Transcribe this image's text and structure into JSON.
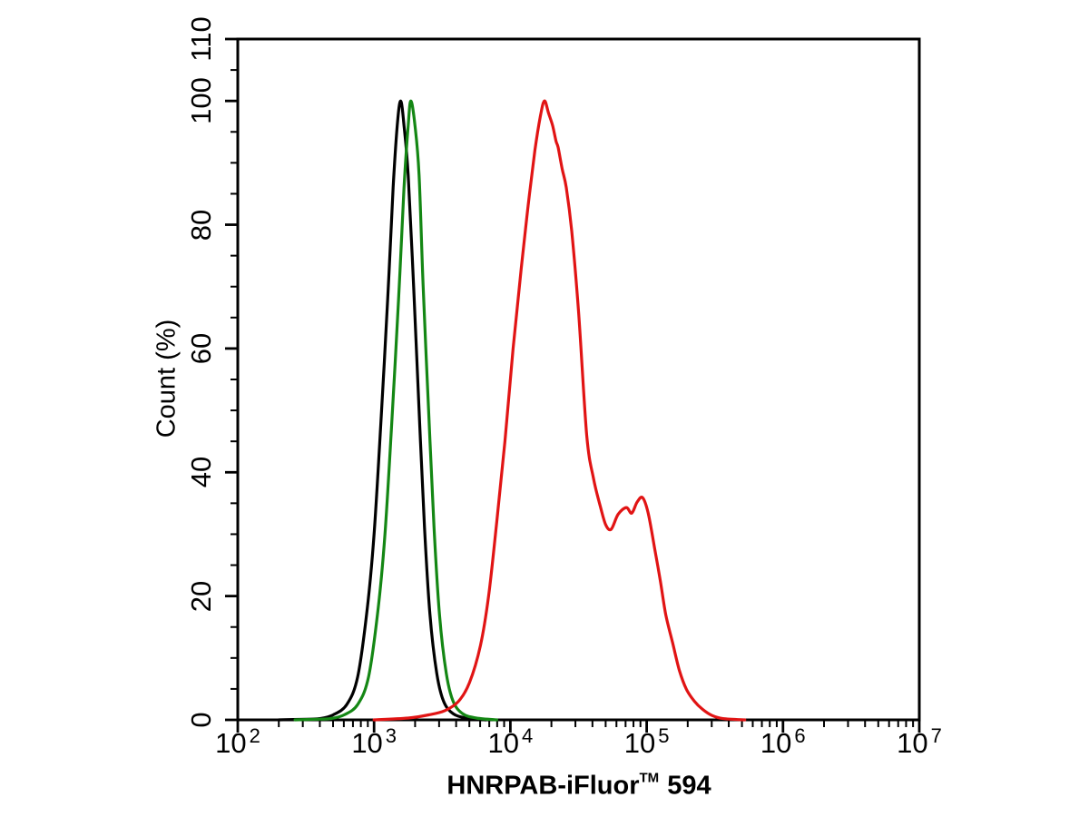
{
  "chart_data": {
    "type": "line",
    "chart_kind": "flow-cytometry-overlay-histogram",
    "title": "",
    "xlabel": "HNRPAB-iFluor™ 594",
    "xlabel_parts": {
      "main": "HNRPAB-iFluor",
      "sup": "TM",
      "tail": "594"
    },
    "ylabel": "Count (%)",
    "x_scale": "log10",
    "xlim_log10": [
      2,
      7
    ],
    "ylim": [
      0,
      110
    ],
    "x_tick_base": "10",
    "x_major_tick_exponents": [
      2,
      3,
      4,
      5,
      6,
      7
    ],
    "y_major_ticks": [
      0,
      20,
      40,
      60,
      80,
      100,
      110
    ],
    "y_minor_tick_step": 5,
    "grid": false,
    "legend": "none",
    "axis_color": "#000000",
    "background_color": "#ffffff",
    "series": [
      {
        "name": "black",
        "color": "#000000",
        "peak": {
          "x_log10": 3.19,
          "x": 1550,
          "y_percent": 100
        },
        "points_log10x_y": [
          [
            2.3,
            0
          ],
          [
            2.5,
            0.1
          ],
          [
            2.6,
            0.2
          ],
          [
            2.7,
            0.8
          ],
          [
            2.8,
            2.5
          ],
          [
            2.88,
            7
          ],
          [
            2.95,
            18
          ],
          [
            3.0,
            30
          ],
          [
            3.05,
            48
          ],
          [
            3.1,
            68
          ],
          [
            3.14,
            86
          ],
          [
            3.17,
            96
          ],
          [
            3.195,
            100
          ],
          [
            3.22,
            96
          ],
          [
            3.25,
            88
          ],
          [
            3.29,
            70
          ],
          [
            3.33,
            50
          ],
          [
            3.37,
            31
          ],
          [
            3.41,
            17
          ],
          [
            3.46,
            7.5
          ],
          [
            3.51,
            3
          ],
          [
            3.58,
            1
          ],
          [
            3.68,
            0.3
          ],
          [
            3.82,
            0
          ]
        ]
      },
      {
        "name": "green",
        "color": "#148714",
        "peak": {
          "x_log10": 3.27,
          "x": 1870,
          "y_percent": 100
        },
        "points_log10x_y": [
          [
            2.42,
            0
          ],
          [
            2.58,
            0.1
          ],
          [
            2.68,
            0.2
          ],
          [
            2.78,
            0.8
          ],
          [
            2.88,
            2.5
          ],
          [
            2.96,
            7
          ],
          [
            3.03,
            18
          ],
          [
            3.08,
            30
          ],
          [
            3.13,
            48
          ],
          [
            3.18,
            68
          ],
          [
            3.22,
            86
          ],
          [
            3.25,
            96
          ],
          [
            3.27,
            100
          ],
          [
            3.3,
            96
          ],
          [
            3.33,
            88
          ],
          [
            3.36,
            70
          ],
          [
            3.4,
            50
          ],
          [
            3.44,
            31
          ],
          [
            3.48,
            17
          ],
          [
            3.53,
            7.5
          ],
          [
            3.58,
            3
          ],
          [
            3.65,
            1
          ],
          [
            3.75,
            0.3
          ],
          [
            3.9,
            0
          ]
        ]
      },
      {
        "name": "red",
        "color": "#e11414",
        "peak": {
          "x_log10": 4.25,
          "x": 17800,
          "y_percent": 100
        },
        "secondary_peak": {
          "x_log10": 4.97,
          "x": 93000,
          "y_percent": 36
        },
        "points_log10x_y": [
          [
            3.0,
            0
          ],
          [
            3.25,
            0.3
          ],
          [
            3.4,
            0.8
          ],
          [
            3.52,
            1.5
          ],
          [
            3.62,
            3
          ],
          [
            3.7,
            6
          ],
          [
            3.78,
            12
          ],
          [
            3.84,
            20
          ],
          [
            3.9,
            32
          ],
          [
            3.96,
            45
          ],
          [
            4.02,
            60
          ],
          [
            4.08,
            73
          ],
          [
            4.13,
            83
          ],
          [
            4.18,
            92
          ],
          [
            4.22,
            97.5
          ],
          [
            4.25,
            100
          ],
          [
            4.28,
            98
          ],
          [
            4.31,
            96
          ],
          [
            4.335,
            93.5
          ],
          [
            4.35,
            92.5
          ],
          [
            4.38,
            89
          ],
          [
            4.41,
            86
          ],
          [
            4.45,
            79
          ],
          [
            4.5,
            66
          ],
          [
            4.56,
            46
          ],
          [
            4.61,
            39
          ],
          [
            4.66,
            34.5
          ],
          [
            4.7,
            31.5
          ],
          [
            4.74,
            30.8
          ],
          [
            4.79,
            33.2
          ],
          [
            4.85,
            34.3
          ],
          [
            4.89,
            33.4
          ],
          [
            4.93,
            35.2
          ],
          [
            4.97,
            35.9
          ],
          [
            5.01,
            33.5
          ],
          [
            5.06,
            27.5
          ],
          [
            5.1,
            22.5
          ],
          [
            5.14,
            17
          ],
          [
            5.19,
            12.5
          ],
          [
            5.24,
            8
          ],
          [
            5.29,
            5
          ],
          [
            5.35,
            3
          ],
          [
            5.41,
            1.7
          ],
          [
            5.48,
            0.7
          ],
          [
            5.56,
            0.2
          ],
          [
            5.72,
            0
          ]
        ]
      }
    ]
  }
}
